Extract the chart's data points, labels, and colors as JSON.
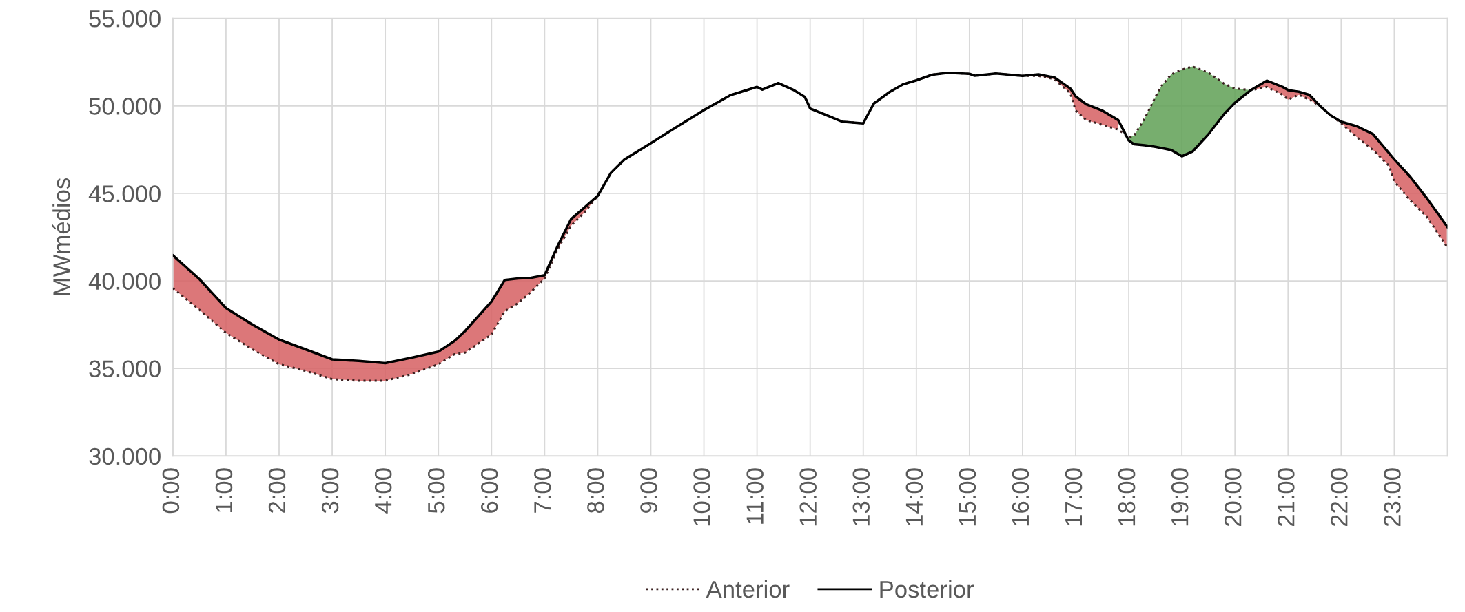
{
  "chart_data": {
    "type": "line",
    "ylabel": "MWmédios",
    "x": [
      0,
      0.5,
      1,
      1.5,
      2,
      2.5,
      3,
      3.5,
      4,
      4.5,
      5,
      5.3,
      5.5,
      6,
      6.25,
      6.5,
      6.75,
      7,
      7.25,
      7.5,
      7.75,
      8,
      8.25,
      8.5,
      9,
      9.5,
      10,
      10.5,
      11,
      11.1,
      11.4,
      11.7,
      11.9,
      12,
      12.3,
      12.6,
      13,
      13.2,
      13.5,
      13.75,
      14,
      14.3,
      14.6,
      15,
      15.1,
      15.5,
      16,
      16.3,
      16.6,
      16.9,
      17,
      17.2,
      17.5,
      17.8,
      18,
      18.1,
      18.3,
      18.5,
      18.6,
      18.8,
      19,
      19.2,
      19.5,
      19.8,
      20,
      20.3,
      20.6,
      20.9,
      21,
      21.2,
      21.4,
      21.6,
      21.8,
      22,
      22.3,
      22.6,
      22.9,
      23,
      23.3,
      23.6,
      24
    ],
    "series": [
      {
        "name": "Anterior",
        "color": "#3a2020",
        "line_style": "dotted",
        "values": [
          39580,
          38350,
          37030,
          36090,
          35240,
          34860,
          34390,
          34300,
          34300,
          34680,
          35240,
          35810,
          35900,
          36940,
          38260,
          38730,
          39390,
          40140,
          41840,
          43160,
          43910,
          44860,
          46180,
          46930,
          47870,
          48820,
          49760,
          50610,
          51080,
          50930,
          51300,
          50890,
          50510,
          49850,
          49480,
          49100,
          49000,
          50140,
          50800,
          51230,
          51460,
          51780,
          51890,
          51830,
          51720,
          51850,
          51710,
          51710,
          51530,
          50720,
          49730,
          49190,
          48920,
          48650,
          48200,
          48300,
          49280,
          50500,
          51080,
          51800,
          52070,
          52250,
          51890,
          51260,
          50990,
          50900,
          51080,
          50630,
          50360,
          50630,
          50360,
          50000,
          49460,
          49010,
          48200,
          47480,
          46580,
          45680,
          44600,
          43710,
          41910
        ],
        "lower": [
          null,
          null,
          null,
          null,
          null,
          null,
          null,
          null,
          null,
          null,
          null,
          null,
          null,
          null,
          null,
          null,
          null,
          null,
          null,
          null,
          null,
          null,
          null,
          null,
          null,
          null,
          null,
          null,
          null,
          null,
          null,
          null,
          null,
          null,
          null,
          null,
          null,
          null,
          null,
          null,
          null,
          null,
          null,
          null,
          null,
          null,
          null,
          null,
          null,
          null,
          null,
          null,
          null,
          null,
          48020,
          47810,
          47750,
          47660,
          47600,
          47480,
          47120,
          47390,
          48380,
          49550,
          50180,
          50900,
          null,
          null,
          null,
          null,
          null,
          null,
          null,
          null,
          null,
          null,
          null,
          null,
          null,
          null,
          null
        ],
        "upper": [
          null,
          null,
          null,
          null,
          null,
          null,
          null,
          null,
          null,
          null,
          null,
          null,
          null,
          null,
          null,
          null,
          null,
          null,
          null,
          null,
          null,
          null,
          null,
          null,
          null,
          null,
          null,
          null,
          null,
          null,
          null,
          null,
          null,
          null,
          null,
          null,
          null,
          null,
          null,
          null,
          null,
          null,
          null,
          null,
          null,
          null,
          null,
          null,
          null,
          null,
          null,
          null,
          null,
          null,
          48200,
          48300,
          49280,
          50500,
          51080,
          51800,
          52070,
          52250,
          51890,
          51260,
          50990,
          50900,
          null,
          null,
          null,
          null,
          null,
          null,
          null,
          null,
          null,
          null,
          null,
          null,
          null,
          null,
          null
        ]
      },
      {
        "name": "Posterior",
        "color": "#000000",
        "line_style": "solid",
        "values": [
          41460,
          40100,
          38450,
          37500,
          36650,
          36090,
          35520,
          35430,
          35300,
          35620,
          35960,
          36560,
          37130,
          38820,
          40050,
          40140,
          40180,
          40330,
          42030,
          43540,
          44200,
          44860,
          46180,
          46930,
          47870,
          48820,
          49760,
          50610,
          51080,
          50930,
          51300,
          50890,
          50510,
          49850,
          49480,
          49100,
          49000,
          50140,
          50800,
          51230,
          51460,
          51780,
          51890,
          51830,
          51720,
          51850,
          51710,
          51800,
          51620,
          50990,
          50540,
          50090,
          49730,
          49190,
          48020,
          47810,
          47750,
          47660,
          47600,
          47480,
          47120,
          47390,
          48380,
          49550,
          50180,
          50900,
          51440,
          51080,
          50900,
          50810,
          50630,
          50000,
          49460,
          49100,
          48830,
          48380,
          47300,
          46940,
          45950,
          44780,
          43080
        ],
        "lower": [
          39580,
          38350,
          37030,
          36090,
          35240,
          34860,
          34390,
          34300,
          34300,
          34680,
          35240,
          35810,
          35900,
          36940,
          38260,
          38730,
          39390,
          40140,
          41840,
          43160,
          43910,
          44860,
          46180,
          46930,
          47870,
          48820,
          49760,
          50610,
          51080,
          50930,
          51300,
          50890,
          50510,
          49850,
          49480,
          49100,
          49000,
          50140,
          50800,
          51230,
          51460,
          51780,
          51890,
          51830,
          51720,
          51850,
          51710,
          51710,
          51530,
          50720,
          49730,
          49190,
          48920,
          48650,
          null,
          null,
          null,
          null,
          null,
          null,
          null,
          null,
          null,
          null,
          null,
          50900,
          51080,
          50630,
          50360,
          50630,
          50360,
          50000,
          49460,
          49010,
          48200,
          47480,
          46580,
          45680,
          44600,
          43710,
          41910
        ],
        "upper": [
          41460,
          40100,
          38450,
          37500,
          36650,
          36090,
          35520,
          35430,
          35300,
          35620,
          35960,
          36560,
          37130,
          38820,
          40050,
          40140,
          40180,
          40330,
          42030,
          43540,
          44200,
          44860,
          46180,
          46930,
          47870,
          48820,
          49760,
          50610,
          51080,
          50930,
          51300,
          50890,
          50510,
          49850,
          49480,
          49100,
          49000,
          50140,
          50800,
          51230,
          51460,
          51780,
          51890,
          51830,
          51720,
          51850,
          51710,
          51800,
          51620,
          50990,
          50540,
          50090,
          49730,
          49190,
          null,
          null,
          null,
          null,
          null,
          null,
          null,
          null,
          null,
          null,
          null,
          50900,
          51440,
          51080,
          50900,
          50810,
          50630,
          50000,
          49460,
          49100,
          48830,
          48380,
          47300,
          46940,
          45950,
          44780,
          43080
        ]
      }
    ],
    "xlim": [
      0,
      24
    ],
    "xticks": [
      {
        "value": 0,
        "label": "0:00"
      },
      {
        "value": 1,
        "label": "1:00"
      },
      {
        "value": 2,
        "label": "2:00"
      },
      {
        "value": 3,
        "label": "3:00"
      },
      {
        "value": 4,
        "label": "4:00"
      },
      {
        "value": 5,
        "label": "5:00"
      },
      {
        "value": 6,
        "label": "6:00"
      },
      {
        "value": 7,
        "label": "7:00"
      },
      {
        "value": 8,
        "label": "8:00"
      },
      {
        "value": 9,
        "label": "9:00"
      },
      {
        "value": 10,
        "label": "10:00"
      },
      {
        "value": 11,
        "label": "11:00"
      },
      {
        "value": 12,
        "label": "12:00"
      },
      {
        "value": 13,
        "label": "13:00"
      },
      {
        "value": 14,
        "label": "14:00"
      },
      {
        "value": 15,
        "label": "15:00"
      },
      {
        "value": 16,
        "label": "16:00"
      },
      {
        "value": 17,
        "label": "17:00"
      },
      {
        "value": 18,
        "label": "18:00"
      },
      {
        "value": 19,
        "label": "19:00"
      },
      {
        "value": 20,
        "label": "20:00"
      },
      {
        "value": 21,
        "label": "21:00"
      },
      {
        "value": 22,
        "label": "22:00"
      },
      {
        "value": 23,
        "label": "23:00"
      }
    ],
    "ylim": [
      30000,
      55000
    ],
    "yticks": [
      {
        "value": 30000,
        "label": "30.000"
      },
      {
        "value": 35000,
        "label": "35.000"
      },
      {
        "value": 40000,
        "label": "40.000"
      },
      {
        "value": 45000,
        "label": "45.000"
      },
      {
        "value": 50000,
        "label": "50.000"
      },
      {
        "value": 55000,
        "label": "55.000"
      }
    ],
    "grid": true,
    "legend": "bottom",
    "marker": "none"
  }
}
